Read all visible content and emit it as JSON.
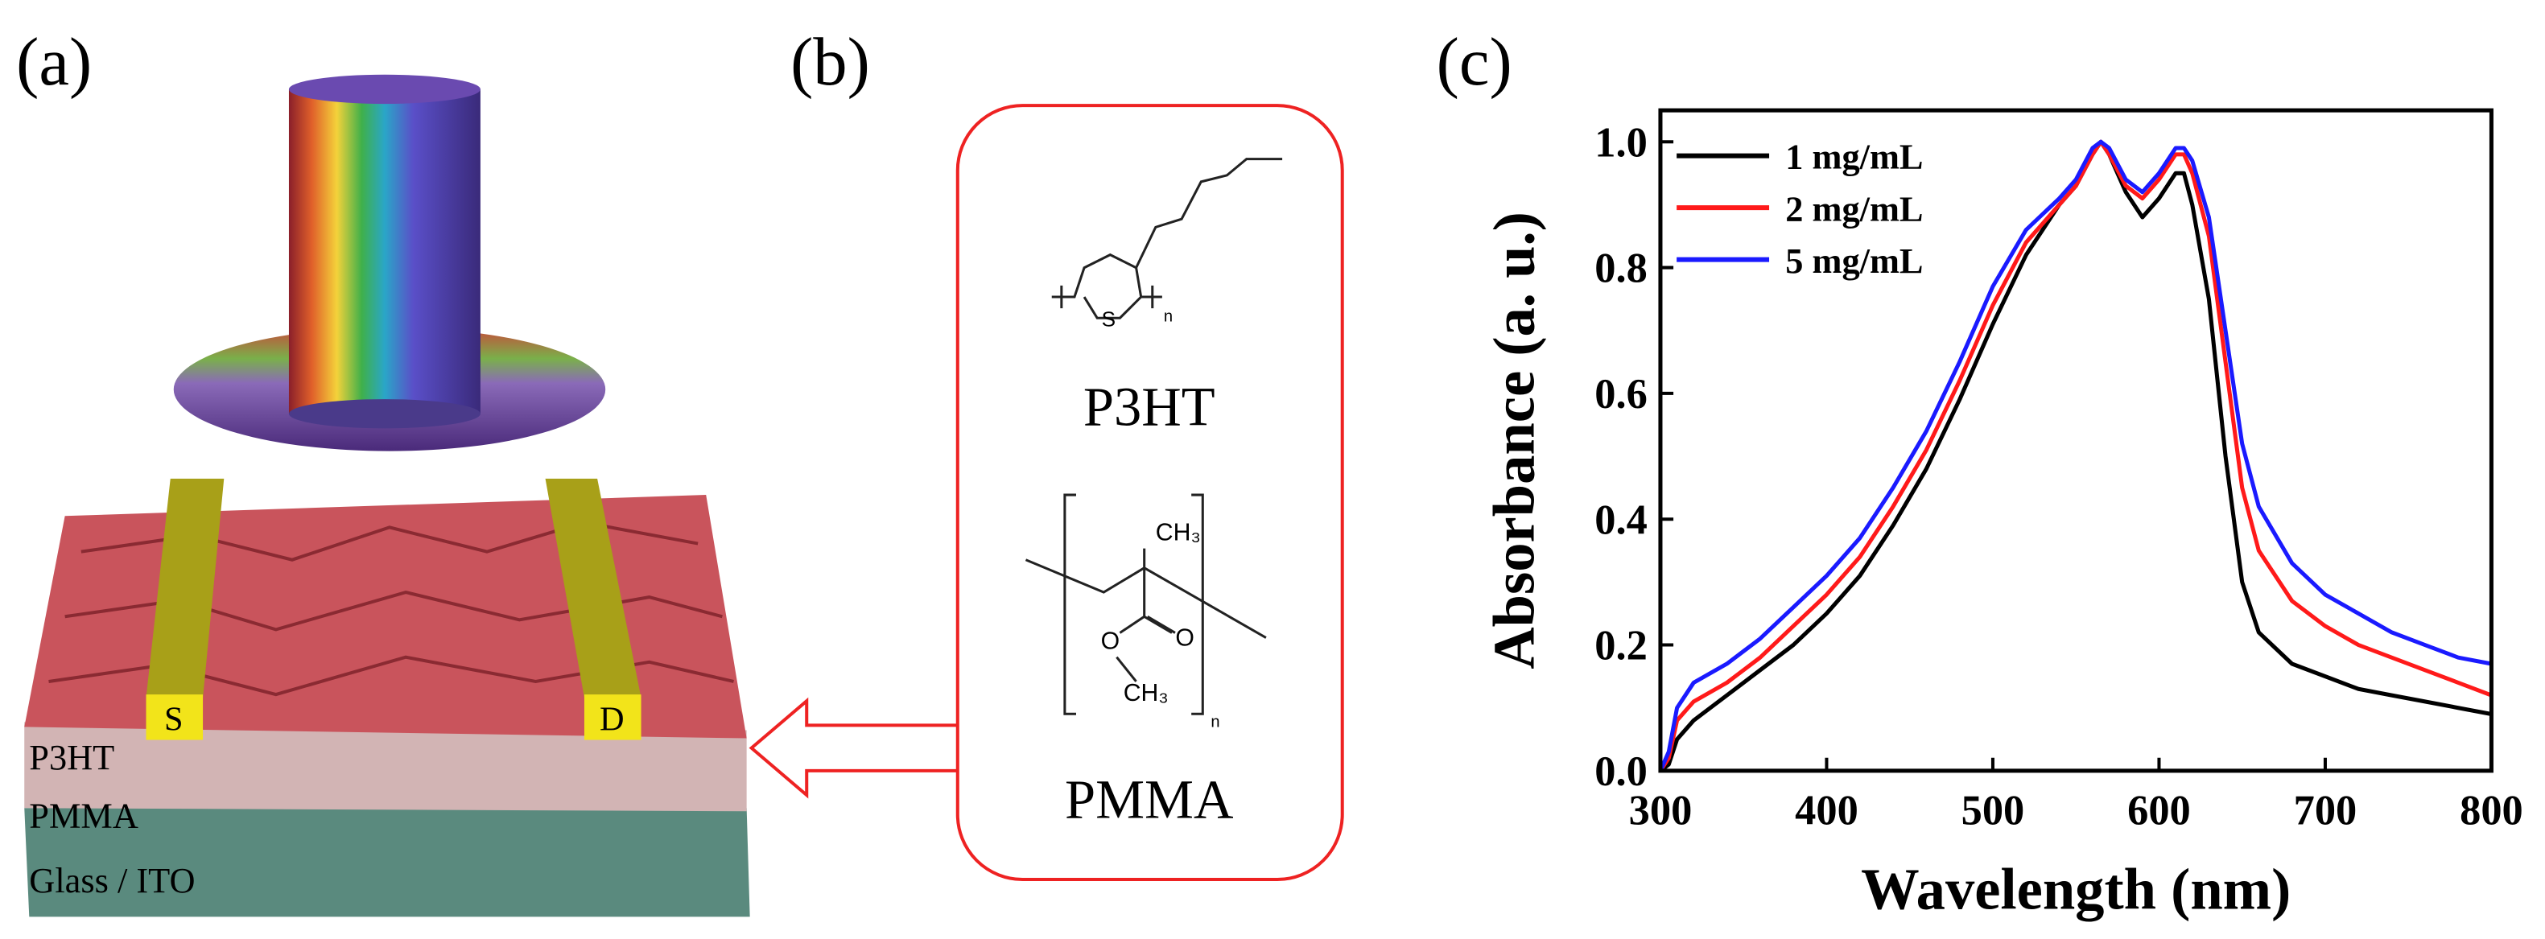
{
  "panel_labels": [
    "(a)",
    "(b)",
    "(c)"
  ],
  "device": {
    "electrodes": [
      "S",
      "D"
    ],
    "layers": [
      "P3HT",
      "PMMA",
      "Glass / ITO"
    ]
  },
  "materials": [
    {
      "name": "P3HT",
      "structure_labels": [
        "S",
        "n"
      ]
    },
    {
      "name": "PMMA",
      "structure_labels": [
        "CH₃",
        "O",
        "O",
        "CH₃",
        "n"
      ]
    }
  ],
  "chart_data": {
    "type": "line",
    "x_label": "Wavelength (nm)",
    "y_label": "Absorbance (a. u.)",
    "xlim": [
      300,
      800
    ],
    "xticks": [
      300,
      400,
      500,
      600,
      700,
      800
    ],
    "ylim": [
      0,
      1.05
    ],
    "yticks": [
      {
        "value": 0,
        "label": "0.0"
      },
      0.2,
      0.4,
      0.6,
      0.8,
      {
        "value": 1,
        "label": "1.0"
      }
    ],
    "grid": false,
    "legend": "upper left",
    "x": [
      300,
      305,
      310,
      320,
      340,
      360,
      380,
      400,
      420,
      440,
      460,
      480,
      500,
      520,
      540,
      550,
      560,
      565,
      570,
      580,
      590,
      600,
      610,
      615,
      620,
      630,
      640,
      650,
      660,
      680,
      700,
      720,
      740,
      760,
      780,
      800
    ],
    "series": [
      {
        "name": "1 mg/mL",
        "color": "#000000",
        "values": [
          0,
          0.01,
          0.05,
          0.08,
          0.12,
          0.16,
          0.2,
          0.25,
          0.31,
          0.39,
          0.48,
          0.59,
          0.71,
          0.82,
          0.9,
          0.93,
          0.98,
          1.0,
          0.98,
          0.92,
          0.88,
          0.91,
          0.95,
          0.95,
          0.9,
          0.75,
          0.5,
          0.3,
          0.22,
          0.17,
          0.15,
          0.13,
          0.12,
          0.11,
          0.1,
          0.09
        ]
      },
      {
        "name": "2 mg/mL",
        "color": "#ff1a1a",
        "values": [
          0,
          0.02,
          0.08,
          0.11,
          0.14,
          0.18,
          0.23,
          0.28,
          0.34,
          0.42,
          0.51,
          0.62,
          0.74,
          0.84,
          0.9,
          0.93,
          0.98,
          1.0,
          0.98,
          0.93,
          0.91,
          0.94,
          0.98,
          0.98,
          0.95,
          0.85,
          0.65,
          0.45,
          0.35,
          0.27,
          0.23,
          0.2,
          0.18,
          0.16,
          0.14,
          0.12
        ]
      },
      {
        "name": "5 mg/mL",
        "color": "#1a1aff",
        "values": [
          0,
          0.03,
          0.1,
          0.14,
          0.17,
          0.21,
          0.26,
          0.31,
          0.37,
          0.45,
          0.54,
          0.65,
          0.77,
          0.86,
          0.91,
          0.94,
          0.99,
          1.0,
          0.99,
          0.94,
          0.92,
          0.95,
          0.99,
          0.99,
          0.97,
          0.88,
          0.7,
          0.52,
          0.42,
          0.33,
          0.28,
          0.25,
          0.22,
          0.2,
          0.18,
          0.17
        ]
      }
    ]
  }
}
